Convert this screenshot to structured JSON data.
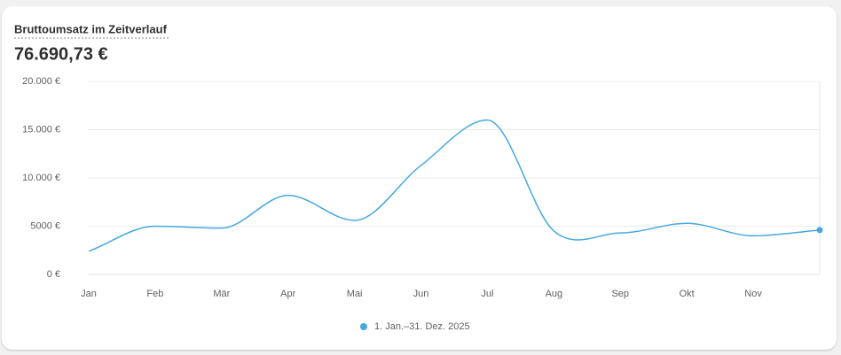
{
  "chart_data": {
    "type": "line",
    "title": "Bruttoumsatz im Zeitverlauf",
    "total": "76.690,73 €",
    "categories": [
      "Jan",
      "Feb",
      "Mär",
      "Apr",
      "Mai",
      "Jun",
      "Jul",
      "Aug",
      "Sep",
      "Okt",
      "Nov",
      null
    ],
    "series": [
      {
        "name": "1. Jan.–31. Dez. 2025",
        "color": "#46a8e0",
        "values": [
          2400,
          5000,
          4800,
          8200,
          5600,
          11300,
          16000,
          4500,
          4300,
          5300,
          4000,
          4600
        ]
      }
    ],
    "ylim": [
      0,
      20000
    ],
    "yticks": [
      {
        "value": 0,
        "label": "0 €"
      },
      {
        "value": 5000,
        "label": "5000 €"
      },
      {
        "value": 10000,
        "label": "10.000 €"
      },
      {
        "value": 15000,
        "label": "15.000 €"
      },
      {
        "value": 20000,
        "label": "20.000 €"
      }
    ],
    "grid": true
  }
}
